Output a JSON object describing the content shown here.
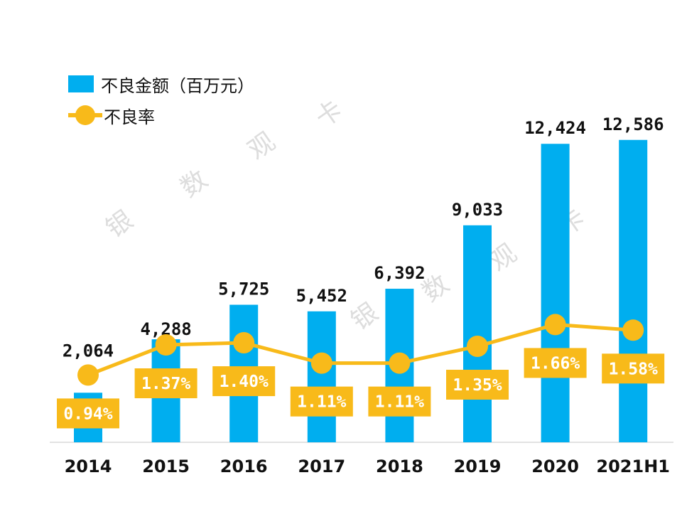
{
  "chart_data": {
    "type": "bar+line",
    "categories": [
      "2014",
      "2015",
      "2016",
      "2017",
      "2018",
      "2019",
      "2020",
      "2021H1"
    ],
    "series": [
      {
        "name": "不良金额（百万元）",
        "type": "bar",
        "values": [
          2064,
          4288,
          5725,
          5452,
          6392,
          9033,
          12424,
          12586
        ],
        "labels": [
          "2,064",
          "4,288",
          "5,725",
          "5,452",
          "6,392",
          "9,033",
          "12,424",
          "12,586"
        ],
        "color": "#00AEEF"
      },
      {
        "name": "不良率",
        "type": "line",
        "values": [
          0.94,
          1.37,
          1.4,
          1.11,
          1.11,
          1.35,
          1.66,
          1.58
        ],
        "labels": [
          "0.94%",
          "1.37%",
          "1.40%",
          "1.11%",
          "1.11%",
          "1.35%",
          "1.66%",
          "1.58%"
        ],
        "color": "#F8BA1A"
      }
    ],
    "ylim": [
      0,
      14000
    ],
    "y2lim": [
      0,
      4.8
    ],
    "grid": false,
    "legend": "top-left"
  },
  "watermark": "银数观卡"
}
